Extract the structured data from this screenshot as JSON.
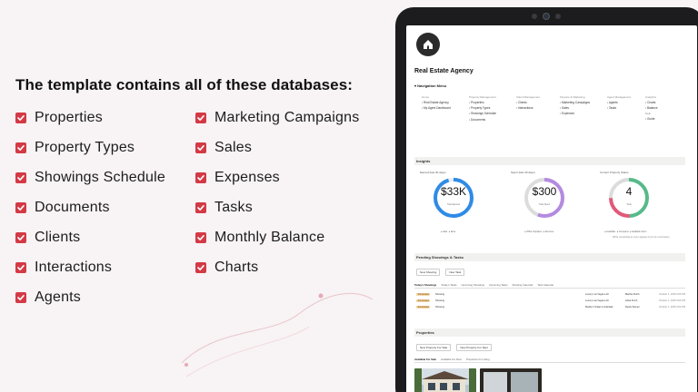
{
  "headline": "The template contains all of these databases:",
  "databases_left": [
    "Properties",
    "Property Types",
    "Showings Schedule",
    "Documents",
    "Clients",
    "Interactions",
    "Agents"
  ],
  "databases_right": [
    "Marketing Campaigns",
    "Sales",
    "Expenses",
    "Tasks",
    "Monthly Balance",
    "Charts"
  ],
  "colors": {
    "accent": "#d33a46",
    "background": "#f8f3f4",
    "ring_blue": "#2f8be6",
    "ring_purple": "#b48be0",
    "ring_green": "#57b98a"
  },
  "app": {
    "title": "Real Estate Agency",
    "nav_heading": "Navigation Menu",
    "nav_columns": [
      {
        "caption": "Home",
        "links": [
          "Real Estate Agency",
          "My Agent Dashboard"
        ]
      },
      {
        "caption": "Property Management",
        "links": [
          "Properties",
          "Property Types",
          "Showings Schedule",
          "Documents"
        ]
      },
      {
        "caption": "Client Management",
        "links": [
          "Clients",
          "Interactions"
        ]
      },
      {
        "caption": "Finance & Marketing",
        "links": [
          "Marketing Campaigns",
          "Sales",
          "Expenses"
        ]
      },
      {
        "caption": "Agent Management",
        "links": [
          "Agents",
          "Tasks"
        ]
      },
      {
        "caption": "Analytics",
        "links": [
          "Charts",
          "Balance"
        ]
      }
    ],
    "help": {
      "caption": "Help",
      "link": "Guide"
    },
    "insights": {
      "title": "Insights",
      "labels": [
        "Earned (last 30 days)",
        "Spent (last 30 days)",
        "Current Property Status"
      ],
      "earned": {
        "value": "$33K",
        "caption": "Total Earned"
      },
      "spent": {
        "value": "$300",
        "caption": "Total Spent"
      },
      "status": {
        "value": "4",
        "caption": "Total"
      },
      "legend_earned": [
        "Sale",
        "Rent"
      ],
      "legend_spent": [
        "Office Supplies",
        "Services"
      ],
      "legend_status": [
        "Available",
        "Occupied",
        "Available Soon"
      ],
      "note": "While completing an entry appears by its for commission."
    },
    "pending": {
      "title": "Pending Showings & Tasks",
      "buttons": [
        "New Showing",
        "New Task"
      ],
      "tabs": [
        "Today's Showings",
        "Today's Tasks",
        "Upcoming Showings",
        "Upcoming Tasks",
        "Showing Calendar",
        "Task Calendar"
      ],
      "rows": [
        {
          "status": "Scheduled",
          "kind": "Showing",
          "property": "Luxury Los Vegas Loft",
          "agent": "Martha Smith",
          "date": "October 1, 2025 9:00 PM"
        },
        {
          "status": "Scheduled",
          "kind": "Showing",
          "property": "Luxury Las Vegas Loft",
          "agent": "Alicia Finch",
          "date": "October 1, 2025 9:00 PM"
        },
        {
          "status": "Scheduled",
          "kind": "Showing",
          "property": "Modern Chalet in Arlantiak",
          "agent": "Derek Steven",
          "date": "October 1, 2025 9:00 PM"
        }
      ]
    },
    "properties": {
      "title": "Properties",
      "buttons": [
        "New Property For Sale",
        "New Property For Rent"
      ],
      "tabs": [
        "Available For Sale",
        "Available For Rent",
        "Properties for Listing"
      ]
    }
  }
}
